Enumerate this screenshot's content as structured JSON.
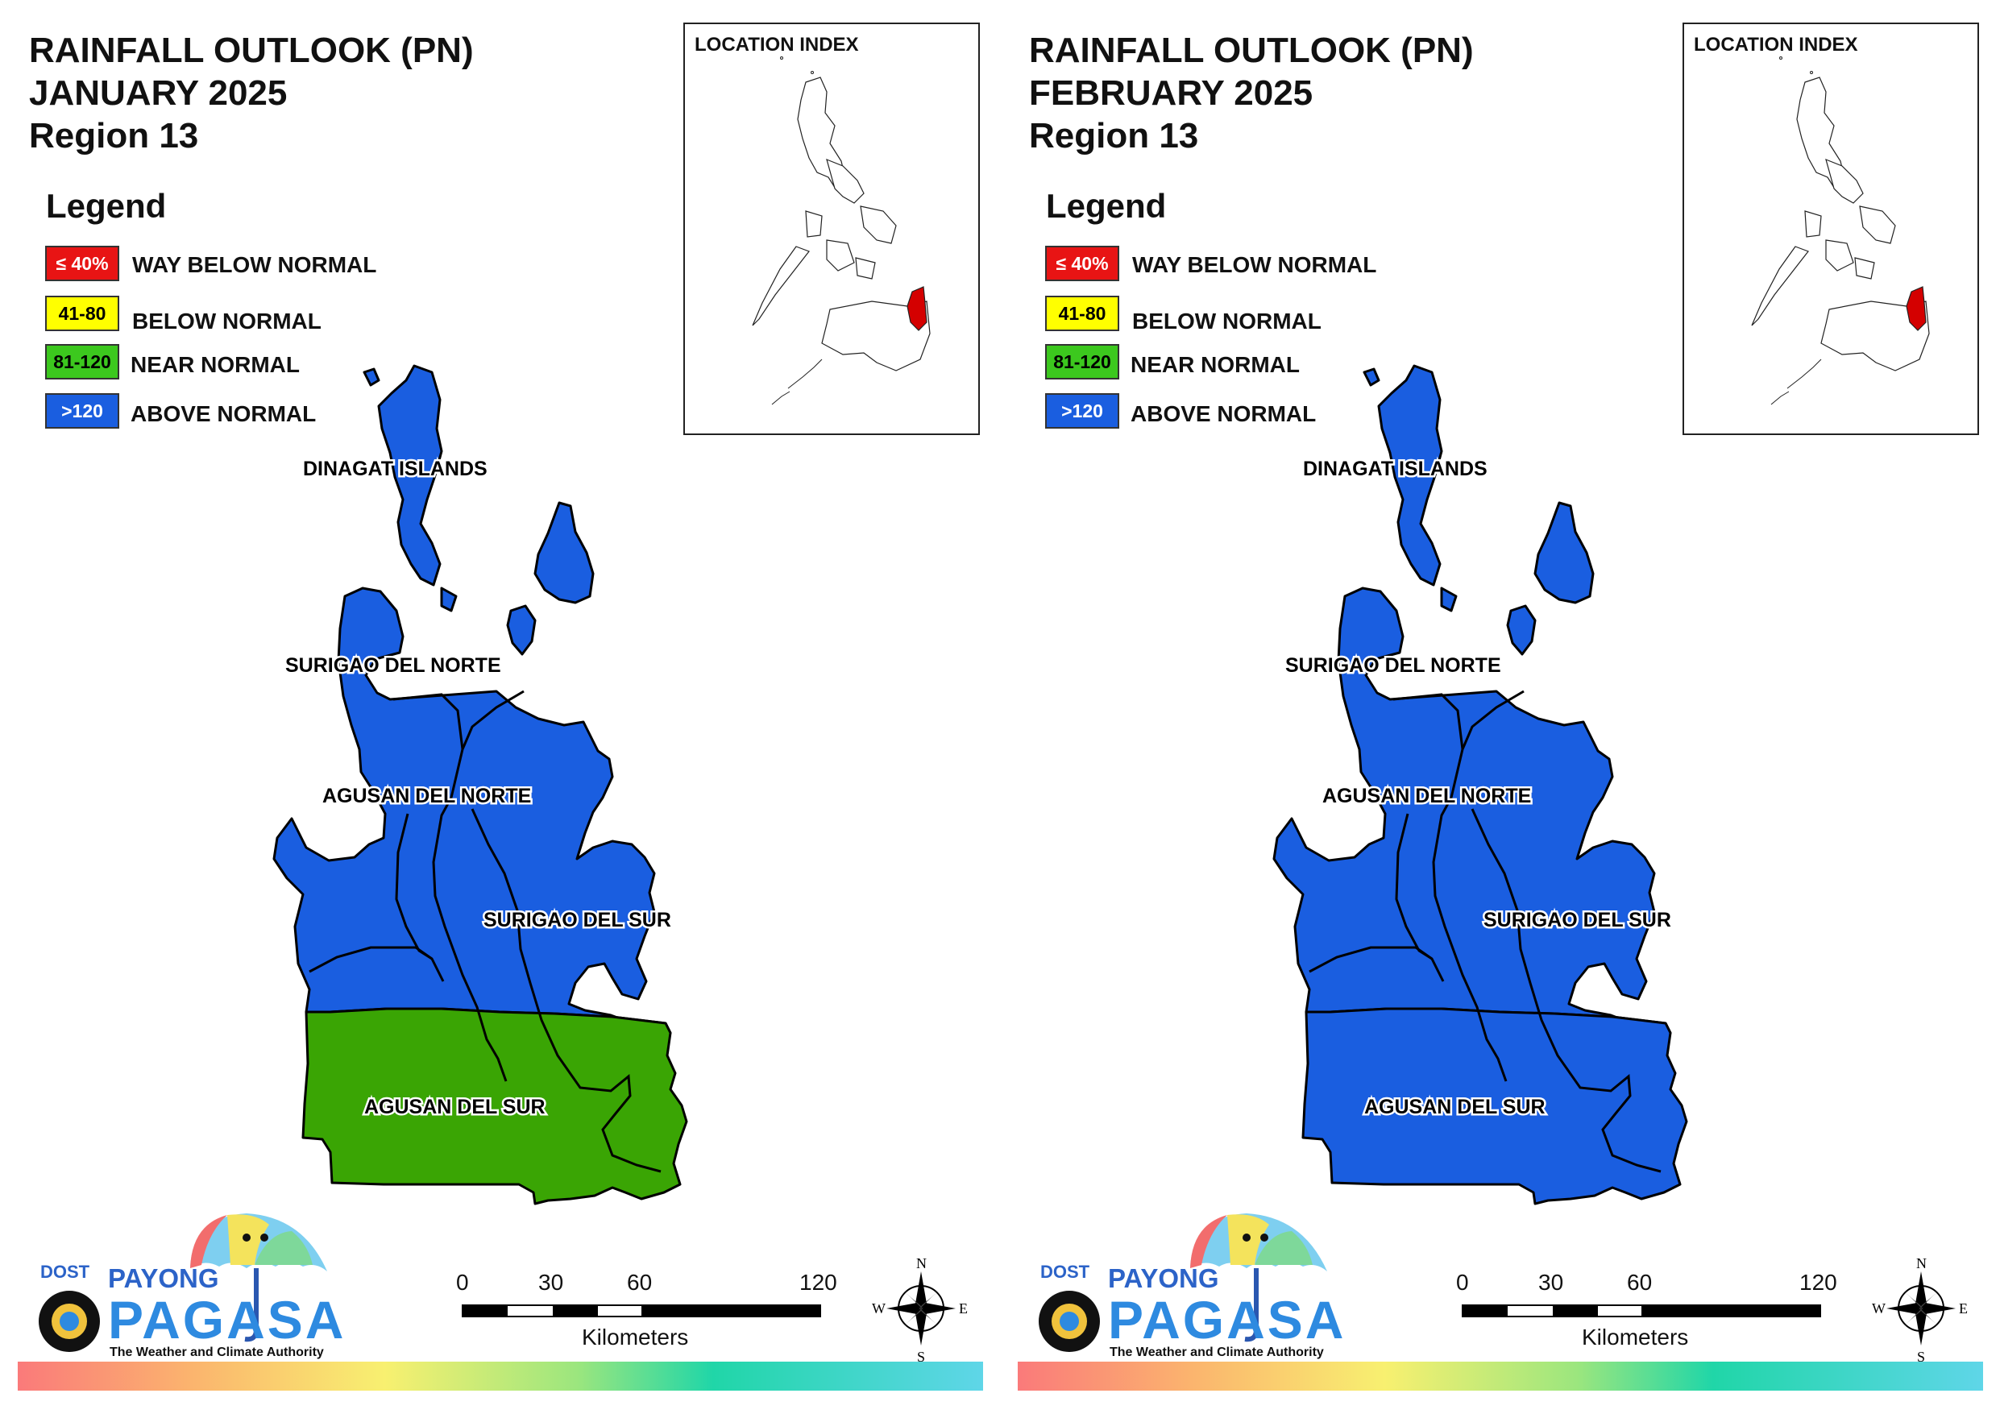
{
  "panels": [
    {
      "title_line1": "RAINFALL OUTLOOK (PN)",
      "title_line2": "JANUARY 2025",
      "title_line3": "Region 13",
      "legend_title": "Legend",
      "legend": [
        {
          "swatch": "≤ 40%",
          "label": "WAY BELOW NORMAL",
          "color": "#e81414",
          "text_color": "#ffffff"
        },
        {
          "swatch": "41-80",
          "label": "BELOW NORMAL",
          "color": "#ffff00",
          "text_color": "#000000"
        },
        {
          "swatch": "81-120",
          "label": "NEAR NORMAL",
          "color": "#3cc81e",
          "text_color": "#000000"
        },
        {
          "swatch": ">120",
          "label": "ABOVE NORMAL",
          "color": "#1a5ee0",
          "text_color": "#ffffff"
        }
      ],
      "index_title": "LOCATION INDEX",
      "provinces": {
        "dinagat": "DINAGAT ISLANDS",
        "surigao_norte": "SURIGAO DEL NORTE",
        "agusan_norte": "AGUSAN DEL NORTE",
        "surigao_sur": "SURIGAO DEL SUR",
        "agusan_sur": "AGUSAN DEL SUR"
      },
      "south_fill": "#3aa504"
    },
    {
      "title_line1": "RAINFALL OUTLOOK (PN)",
      "title_line2": "FEBRUARY 2025",
      "title_line3": "Region 13",
      "legend_title": "Legend",
      "legend": [
        {
          "swatch": "≤ 40%",
          "label": "WAY BELOW NORMAL",
          "color": "#e81414",
          "text_color": "#ffffff"
        },
        {
          "swatch": "41-80",
          "label": "BELOW NORMAL",
          "color": "#ffff00",
          "text_color": "#000000"
        },
        {
          "swatch": "81-120",
          "label": "NEAR NORMAL",
          "color": "#3cc81e",
          "text_color": "#000000"
        },
        {
          "swatch": ">120",
          "label": "ABOVE NORMAL",
          "color": "#1a5ee0",
          "text_color": "#ffffff"
        }
      ],
      "index_title": "LOCATION INDEX",
      "provinces": {
        "dinagat": "DINAGAT ISLANDS",
        "surigao_norte": "SURIGAO DEL NORTE",
        "agusan_norte": "AGUSAN DEL NORTE",
        "surigao_sur": "SURIGAO DEL SUR",
        "agusan_sur": "AGUSAN DEL SUR"
      },
      "south_fill": "#1a5ee0"
    }
  ],
  "map_colors": {
    "above_normal": "#1a5ee0",
    "near_normal": "#3aa504",
    "index_highlight": "#d40000"
  },
  "logo": {
    "dost": "DOST",
    "payong": "PAYONG",
    "pagasa": "PAGASA",
    "tagline": "The Weather and Climate Authority"
  },
  "scale_bar": {
    "ticks": [
      "0",
      "30",
      "60",
      "120"
    ],
    "units": "Kilometers"
  },
  "compass": {
    "n": "N",
    "e": "E",
    "s": "S",
    "w": "W"
  }
}
